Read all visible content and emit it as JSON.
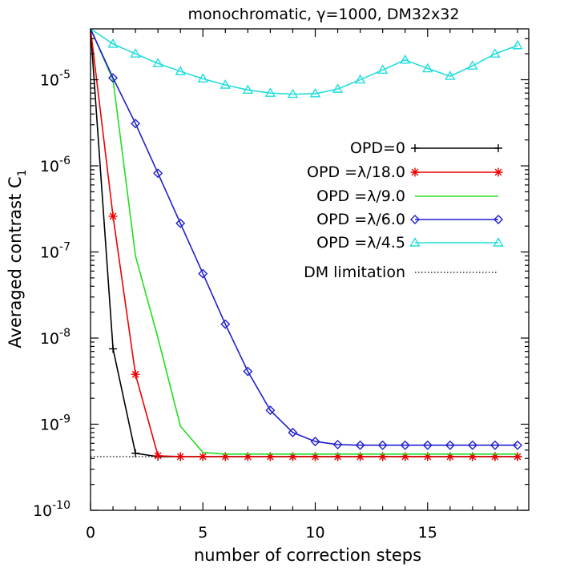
{
  "chart_data": {
    "type": "line",
    "title": "monochromatic, γ=1000,    DM32x32",
    "xlabel": "number of correction steps",
    "ylabel": "Averaged contrast C",
    "ylabel_subscript": "1",
    "xlim": [
      0,
      19.5
    ],
    "ylim": [
      1e-10,
      3.9e-05
    ],
    "yscale": "log",
    "x_ticks": [
      0,
      5,
      10,
      15
    ],
    "x_tick_labels": [
      "0",
      "5",
      "10",
      "15"
    ],
    "y_ticks": [
      1e-10,
      1e-09,
      1e-08,
      1e-07,
      1e-06,
      1e-05
    ],
    "y_tick_labels": [
      {
        "base": "10",
        "exp": "-10"
      },
      {
        "base": "10",
        "exp": "-9"
      },
      {
        "base": "10",
        "exp": "-8"
      },
      {
        "base": "10",
        "exp": "-7"
      },
      {
        "base": "10",
        "exp": "-6"
      },
      {
        "base": "10",
        "exp": "-5"
      }
    ],
    "grid": false,
    "legend_position": "right",
    "series": [
      {
        "name": "OPD=0",
        "color": "#000000",
        "marker": "plus",
        "x": [
          0,
          1,
          2,
          3,
          4,
          5,
          6,
          7,
          8,
          9,
          10,
          11,
          12,
          13,
          14,
          15,
          16,
          17,
          18,
          19
        ],
        "y": [
          3.9e-05,
          7.5e-09,
          4.6e-10,
          4.2e-10,
          4.2e-10,
          4.2e-10,
          4.2e-10,
          4.2e-10,
          4.2e-10,
          4.2e-10,
          4.2e-10,
          4.2e-10,
          4.2e-10,
          4.2e-10,
          4.2e-10,
          4.2e-10,
          4.2e-10,
          4.2e-10,
          4.2e-10,
          4.2e-10
        ]
      },
      {
        "name": "OPD =λ/18.0",
        "color": "#ee0000",
        "marker": "asterisk",
        "x": [
          0,
          1,
          2,
          3,
          4,
          5,
          6,
          7,
          8,
          9,
          10,
          11,
          12,
          13,
          14,
          15,
          16,
          17,
          18,
          19
        ],
        "y": [
          3.9e-05,
          2.6e-07,
          3.8e-09,
          4.3e-10,
          4.2e-10,
          4.2e-10,
          4.2e-10,
          4.2e-10,
          4.2e-10,
          4.2e-10,
          4.2e-10,
          4.2e-10,
          4.2e-10,
          4.2e-10,
          4.2e-10,
          4.2e-10,
          4.2e-10,
          4.2e-10,
          4.2e-10,
          4.2e-10
        ]
      },
      {
        "name": "OPD =λ/9.0",
        "color": "#22dd22",
        "marker": "none",
        "x": [
          0,
          1,
          2,
          3,
          4,
          5,
          6,
          7,
          8,
          9,
          10,
          11,
          12,
          13,
          14,
          15,
          16,
          17,
          18,
          19
        ],
        "y": [
          3.9e-05,
          1e-05,
          9e-08,
          1e-08,
          9.5e-10,
          4.7e-10,
          4.5e-10,
          4.5e-10,
          4.5e-10,
          4.5e-10,
          4.5e-10,
          4.5e-10,
          4.5e-10,
          4.5e-10,
          4.5e-10,
          4.5e-10,
          4.5e-10,
          4.5e-10,
          4.5e-10,
          4.5e-10
        ]
      },
      {
        "name": "OPD =λ/6.0",
        "color": "#1f1fcc",
        "marker": "diamond",
        "x": [
          0,
          1,
          2,
          3,
          4,
          5,
          6,
          7,
          8,
          9,
          10,
          11,
          12,
          13,
          14,
          15,
          16,
          17,
          18,
          19
        ],
        "y": [
          3.9e-05,
          1.05e-05,
          3.1e-06,
          8.2e-07,
          2.15e-07,
          5.6e-08,
          1.45e-08,
          4.1e-09,
          1.45e-09,
          8e-10,
          6.3e-10,
          5.8e-10,
          5.7e-10,
          5.7e-10,
          5.7e-10,
          5.7e-10,
          5.7e-10,
          5.7e-10,
          5.7e-10,
          5.7e-10
        ]
      },
      {
        "name": "OPD =λ/4.5",
        "color": "#22dddd",
        "marker": "triangle",
        "x": [
          0,
          1,
          2,
          3,
          4,
          5,
          6,
          7,
          8,
          9,
          10,
          11,
          12,
          13,
          14,
          15,
          16,
          17,
          18,
          19
        ],
        "y": [
          3.9e-05,
          2.6e-05,
          2e-05,
          1.55e-05,
          1.25e-05,
          1.03e-05,
          8.7e-06,
          7.6e-06,
          7e-06,
          6.8e-06,
          6.9e-06,
          7.8e-06,
          1e-05,
          1.3e-05,
          1.7e-05,
          1.35e-05,
          1.1e-05,
          1.45e-05,
          2e-05,
          2.5e-05
        ]
      }
    ],
    "reference": {
      "name": "DM limitation",
      "color": "#000000",
      "style": "dotted",
      "x": [
        0,
        19
      ],
      "y": [
        4.2e-10,
        4.2e-10
      ]
    }
  }
}
